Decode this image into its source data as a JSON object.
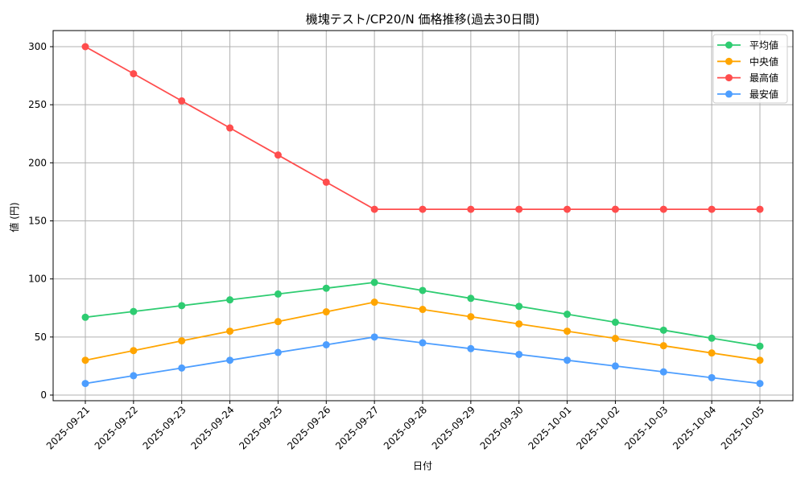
{
  "chart_data": {
    "type": "line",
    "title": "機塊テスト/CP20/N 価格推移(過去30日間)",
    "xlabel": "日付",
    "ylabel": "値 (円)",
    "ylim": [
      -9,
      315
    ],
    "yticks": [
      0,
      50,
      100,
      150,
      200,
      250,
      300
    ],
    "grid": true,
    "legend_position": "upper right",
    "categories": [
      "2025-09-21",
      "2025-09-22",
      "2025-09-23",
      "2025-09-24",
      "2025-09-25",
      "2025-09-26",
      "2025-09-27",
      "2025-09-28",
      "2025-09-29",
      "2025-09-30",
      "2025-10-01",
      "2025-10-02",
      "2025-10-03",
      "2025-10-04",
      "2025-10-05"
    ],
    "series": [
      {
        "name": "平均値",
        "color": "#2ecc71",
        "values": [
          67,
          72,
          77,
          82,
          87,
          92,
          97,
          90.1,
          83.3,
          76.4,
          69.6,
          62.7,
          55.9,
          49,
          42.1
        ]
      },
      {
        "name": "中央値",
        "color": "#ffa500",
        "values": [
          30,
          38.3,
          46.7,
          55,
          63.3,
          71.7,
          80,
          73.75,
          67.5,
          61.25,
          55,
          48.75,
          42.5,
          36.25,
          30
        ]
      },
      {
        "name": "最高値",
        "color": "#ff4d4d",
        "values": [
          300,
          276.7,
          253.3,
          230,
          206.7,
          183.3,
          160,
          160,
          160,
          160,
          160,
          160,
          160,
          160,
          160
        ]
      },
      {
        "name": "最安値",
        "color": "#4d9eff",
        "values": [
          10,
          16.7,
          23.3,
          30,
          36.7,
          43.3,
          50,
          45,
          40,
          35,
          30,
          25,
          20,
          15,
          10
        ]
      }
    ]
  }
}
